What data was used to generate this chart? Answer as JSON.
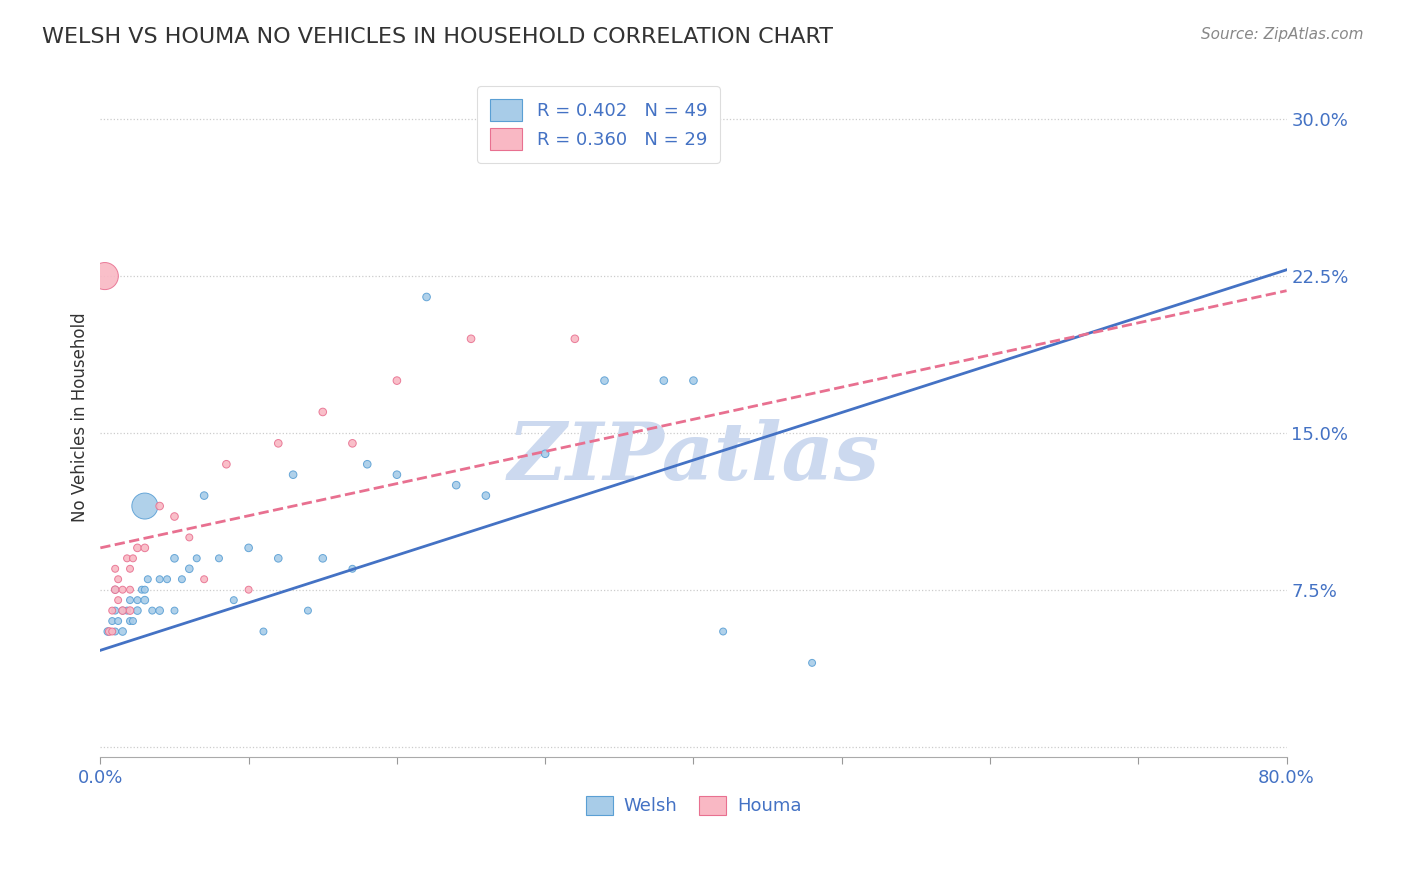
{
  "title": "WELSH VS HOUMA NO VEHICLES IN HOUSEHOLD CORRELATION CHART",
  "source_text": "Source: ZipAtlas.com",
  "ylabel": "No Vehicles in Household",
  "xlim": [
    0.0,
    0.8
  ],
  "ylim": [
    -0.005,
    0.32
  ],
  "yticks": [
    0.0,
    0.075,
    0.15,
    0.225,
    0.3
  ],
  "ytick_labels": [
    "",
    "7.5%",
    "15.0%",
    "22.5%",
    "30.0%"
  ],
  "xticks": [
    0.0,
    0.1,
    0.2,
    0.3,
    0.4,
    0.5,
    0.6,
    0.7,
    0.8
  ],
  "xtick_labels": [
    "0.0%",
    "",
    "",
    "",
    "",
    "",
    "",
    "",
    "80.0%"
  ],
  "welsh_R": 0.402,
  "welsh_N": 49,
  "houma_R": 0.36,
  "houma_N": 29,
  "welsh_color": "#a8cce8",
  "houma_color": "#f9b8c4",
  "welsh_edge_color": "#5a9fd4",
  "houma_edge_color": "#e87090",
  "welsh_line_color": "#4472c4",
  "houma_line_color": "#e87090",
  "legend_label_color": "#4472c4",
  "watermark": "ZIPatlas",
  "watermark_color": "#ccd9ef",
  "background_color": "#ffffff",
  "grid_color": "#cccccc",
  "title_color": "#333333",
  "axis_tick_color": "#4472c4",
  "ylabel_color": "#333333",
  "welsh_x": [
    0.005,
    0.008,
    0.01,
    0.01,
    0.01,
    0.012,
    0.015,
    0.015,
    0.018,
    0.02,
    0.02,
    0.022,
    0.025,
    0.025,
    0.028,
    0.03,
    0.03,
    0.03,
    0.032,
    0.035,
    0.04,
    0.04,
    0.045,
    0.05,
    0.05,
    0.055,
    0.06,
    0.065,
    0.07,
    0.08,
    0.09,
    0.1,
    0.11,
    0.12,
    0.13,
    0.14,
    0.15,
    0.17,
    0.18,
    0.2,
    0.22,
    0.24,
    0.26,
    0.3,
    0.34,
    0.38,
    0.4,
    0.42,
    0.48
  ],
  "welsh_y": [
    0.055,
    0.06,
    0.055,
    0.065,
    0.075,
    0.06,
    0.055,
    0.065,
    0.065,
    0.06,
    0.07,
    0.06,
    0.065,
    0.07,
    0.075,
    0.115,
    0.07,
    0.075,
    0.08,
    0.065,
    0.065,
    0.08,
    0.08,
    0.065,
    0.09,
    0.08,
    0.085,
    0.09,
    0.12,
    0.09,
    0.07,
    0.095,
    0.055,
    0.09,
    0.13,
    0.065,
    0.09,
    0.085,
    0.135,
    0.13,
    0.215,
    0.125,
    0.12,
    0.14,
    0.175,
    0.175,
    0.175,
    0.055,
    0.04
  ],
  "welsh_sizes": [
    30,
    25,
    25,
    25,
    25,
    25,
    30,
    25,
    25,
    25,
    25,
    25,
    30,
    25,
    25,
    350,
    30,
    25,
    25,
    25,
    30,
    25,
    25,
    25,
    30,
    25,
    30,
    25,
    30,
    25,
    25,
    30,
    25,
    30,
    30,
    25,
    30,
    25,
    30,
    30,
    30,
    30,
    30,
    30,
    30,
    30,
    30,
    25,
    25
  ],
  "houma_x": [
    0.003,
    0.006,
    0.008,
    0.008,
    0.01,
    0.01,
    0.012,
    0.012,
    0.015,
    0.015,
    0.018,
    0.02,
    0.02,
    0.02,
    0.022,
    0.025,
    0.03,
    0.04,
    0.05,
    0.06,
    0.07,
    0.085,
    0.1,
    0.12,
    0.15,
    0.17,
    0.2,
    0.25,
    0.32
  ],
  "houma_y": [
    0.225,
    0.055,
    0.055,
    0.065,
    0.075,
    0.085,
    0.07,
    0.08,
    0.065,
    0.075,
    0.09,
    0.065,
    0.075,
    0.085,
    0.09,
    0.095,
    0.095,
    0.115,
    0.11,
    0.1,
    0.08,
    0.135,
    0.075,
    0.145,
    0.16,
    0.145,
    0.175,
    0.195,
    0.195
  ],
  "houma_sizes": [
    380,
    30,
    25,
    25,
    30,
    25,
    25,
    25,
    30,
    25,
    25,
    30,
    25,
    25,
    25,
    30,
    30,
    30,
    30,
    25,
    25,
    30,
    25,
    30,
    30,
    30,
    30,
    30,
    30
  ],
  "welsh_line_x0": 0.0,
  "welsh_line_y0": 0.046,
  "welsh_line_x1": 0.8,
  "welsh_line_y1": 0.228,
  "houma_line_x0": 0.0,
  "houma_line_y0": 0.095,
  "houma_line_x1": 0.8,
  "houma_line_y1": 0.218
}
